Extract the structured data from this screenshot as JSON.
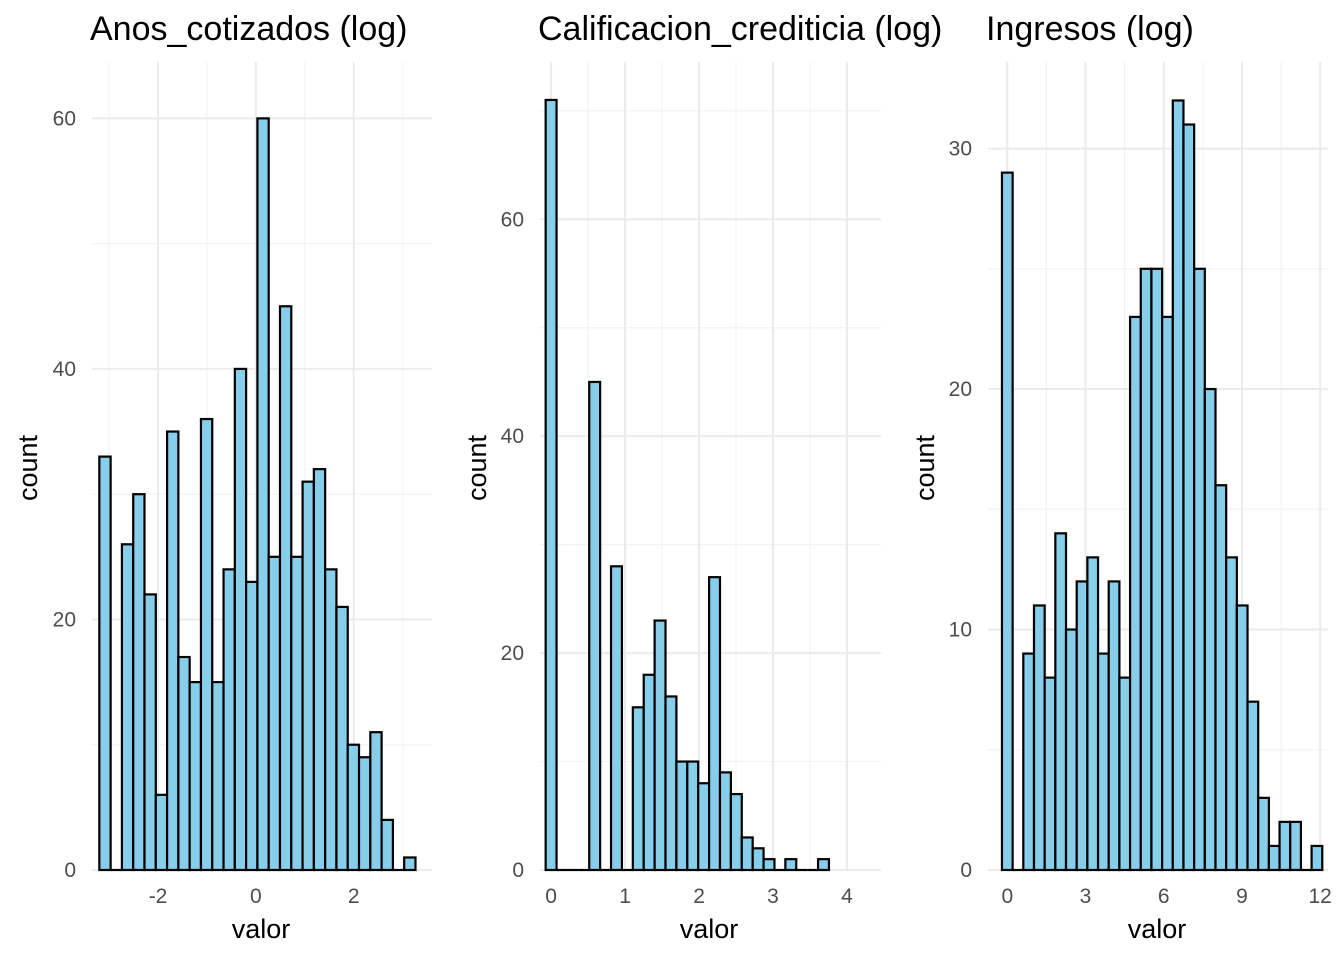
{
  "chart_data": [
    {
      "type": "bar",
      "title": "Anos_cotizados (log)",
      "xlabel": "valor",
      "ylabel": "count",
      "xlim": [
        -3.35,
        3.6
      ],
      "ylim": [
        0,
        64.5
      ],
      "x_ticks": [
        -2,
        0,
        2
      ],
      "x_tick_labels": [
        "-2",
        "0",
        "2"
      ],
      "y_ticks": [
        0,
        20,
        40,
        60
      ],
      "y_tick_labels": [
        "0",
        "20",
        "40",
        "60"
      ],
      "bin_width": 0.2308,
      "bins_start": -3.2,
      "values": [
        33,
        0,
        26,
        30,
        22,
        6,
        35,
        17,
        15,
        36,
        15,
        24,
        40,
        23,
        60,
        25,
        45,
        25,
        31,
        32,
        24,
        21,
        10,
        9,
        11,
        4,
        0,
        1
      ],
      "grid": true
    },
    {
      "type": "bar",
      "title": "Calificacion_crediticia (log)",
      "xlabel": "valor",
      "ylabel": "count",
      "xlim": [
        -0.15,
        4.46
      ],
      "ylim": [
        0,
        74.5
      ],
      "x_ticks": [
        0,
        1,
        2,
        3,
        4
      ],
      "x_tick_labels": [
        "0",
        "1",
        "2",
        "3",
        "4"
      ],
      "y_ticks": [
        0,
        20,
        40,
        60
      ],
      "y_tick_labels": [
        "0",
        "20",
        "40",
        "60"
      ],
      "bin_width": 0.1473,
      "bins_start": -0.0735,
      "values": [
        71,
        0,
        0,
        0,
        45,
        0,
        28,
        0,
        15,
        18,
        23,
        16,
        10,
        10,
        8,
        27,
        9,
        7,
        3,
        2,
        1,
        0,
        1,
        0,
        0,
        1
      ],
      "grid": true
    },
    {
      "type": "bar",
      "title": "Ingresos (log)",
      "xlabel": "valor",
      "ylabel": "count",
      "xlim": [
        -0.74,
        12.3
      ],
      "ylim": [
        0,
        33.6
      ],
      "x_ticks": [
        0,
        3,
        6,
        9,
        12
      ],
      "x_tick_labels": [
        "0",
        "3",
        "6",
        "9",
        "12"
      ],
      "y_ticks": [
        0,
        10,
        20,
        30
      ],
      "y_tick_labels": [
        "0",
        "10",
        "20",
        "30"
      ],
      "bin_width": 0.4095,
      "bins_start": -0.2048,
      "values": [
        29,
        0,
        9,
        11,
        8,
        14,
        10,
        12,
        13,
        9,
        12,
        8,
        23,
        25,
        25,
        23,
        32,
        31,
        25,
        20,
        16,
        13,
        11,
        7,
        3,
        1,
        2,
        2,
        0,
        1
      ],
      "grid": true
    }
  ]
}
